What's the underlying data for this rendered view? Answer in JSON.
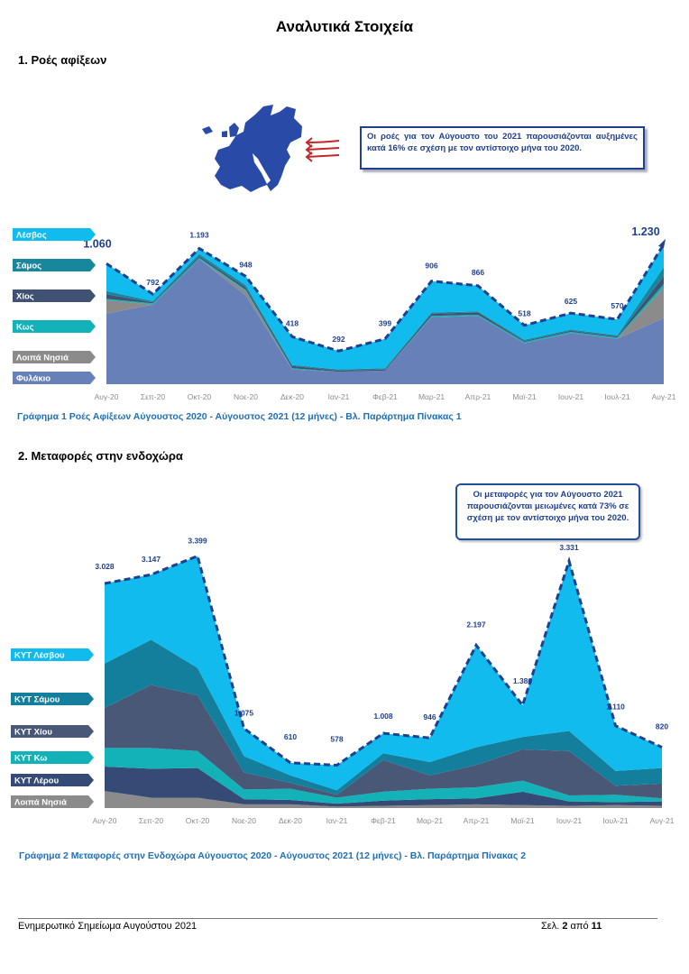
{
  "page": {
    "title": "Αναλυτικά Στοιχεία",
    "section1_title": "1.  Ροές αφίξεων",
    "section2_title": "2.  Μεταφορές στην ενδοχώρα",
    "caption1": "Γράφημα 1 Ροές Αφίξεων Αύγουστος 2020 - Αύγουστος 2021 (12 μήνες) - Βλ. Παράρτημα  Πίνακας 1",
    "caption2": "Γράφημα 2 Μεταφορές στην Ενδοχώρα Αύγουστος 2020 - Αύγουστος 2021 (12 μήνες) - Βλ. Παράρτημα Πίνακας 2",
    "callout1": "Οι ροές για τον Αύγουστο του 2021 παρουσιάζονται αυξημένες κατά 16% σε σχέση με τον αντίστοιχο μήνα του 2020.",
    "callout2": "Οι μεταφορές για τον Αύγουστο 2021 παρουσιάζονται μειωμένες κατά 73% σε σχέση με τον αντίστοιχο μήνα του 2020.",
    "footer_left": "Ενημερωτικό Σημείωμα Αυγούστου 2021",
    "footer_page_prefix": "Σελ. ",
    "footer_page_current": "2",
    "footer_page_mid": " από ",
    "footer_page_total": "11"
  },
  "colors": {
    "accent": "#1f6fb8",
    "dashed_total": "#1f3f8f",
    "map": "#2a4aa8",
    "arrow": "#c0282a"
  },
  "chart_data": [
    {
      "type": "area",
      "title": "",
      "months": [
        "Αυγ-20",
        "Σεπ-20",
        "Οκτ-20",
        "Νοε-20",
        "Δεκ-20",
        "Ιαν-21",
        "Φεβ-21",
        "Μαρ-21",
        "Απρ-21",
        "Μαϊ-21",
        "Ιουν-21",
        "Ιουλ-21",
        "Αυγ-21"
      ],
      "totals": [
        1060,
        792,
        1193,
        948,
        418,
        292,
        399,
        906,
        866,
        518,
        625,
        570,
        1230
      ],
      "total_labels": [
        "1.060",
        "792",
        "1.193",
        "948",
        "418",
        "292",
        "399",
        "906",
        "866",
        "518",
        "625",
        "570",
        "1.230"
      ],
      "ymax": 1300,
      "series": [
        {
          "name": "Φυλάκιο",
          "color": "#6781b8",
          "values": [
            620,
            700,
            1100,
            780,
            130,
            110,
            120,
            590,
            600,
            360,
            450,
            400,
            580
          ]
        },
        {
          "name": "Λοιπά Νησιά",
          "color": "#8b8b8b",
          "values": [
            120,
            0,
            0,
            40,
            0,
            0,
            0,
            0,
            0,
            0,
            0,
            0,
            270
          ]
        },
        {
          "name": "Κως",
          "color": "#12b2b8",
          "values": [
            10,
            10,
            10,
            10,
            10,
            0,
            0,
            10,
            10,
            10,
            10,
            10,
            30
          ]
        },
        {
          "name": "Χίος",
          "color": "#3f5274",
          "values": [
            40,
            10,
            15,
            20,
            20,
            10,
            10,
            20,
            20,
            10,
            10,
            10,
            70
          ]
        },
        {
          "name": "Σάμος",
          "color": "#17879e",
          "values": [
            30,
            10,
            20,
            20,
            10,
            10,
            10,
            10,
            10,
            10,
            10,
            10,
            80
          ]
        },
        {
          "name": "Λέσβος",
          "color": "#11bbee",
          "values": [
            240,
            62,
            48,
            78,
            248,
            162,
            259,
            276,
            226,
            128,
            145,
            140,
            200
          ]
        }
      ]
    },
    {
      "type": "area",
      "title": "",
      "months": [
        "Αυγ-20",
        "Σεπ-20",
        "Οκτ-20",
        "Νοε-20",
        "Δεκ-20",
        "Ιαν-21",
        "Φεβ-21",
        "Μαρ-21",
        "Απρ-21",
        "Μαϊ-21",
        "Ιουν-21",
        "Ιουλ-21",
        "Αυγ-21"
      ],
      "totals": [
        3028,
        3147,
        3399,
        1075,
        610,
        578,
        1008,
        946,
        2197,
        1386,
        3331,
        1110,
        820
      ],
      "total_labels": [
        "3.028",
        "3.147",
        "3.399",
        "1.075",
        "610",
        "578",
        "1.008",
        "946",
        "2.197",
        "1.386",
        "3.331",
        "1.110",
        "820"
      ],
      "ymax": 3600,
      "series": [
        {
          "name": "Λοιπά Νησιά",
          "color": "#8b8b8b",
          "values": [
            230,
            140,
            140,
            50,
            50,
            20,
            30,
            40,
            50,
            40,
            30,
            40,
            30
          ]
        },
        {
          "name": "ΚΥΤ Λέρου",
          "color": "#354a74",
          "values": [
            330,
            390,
            400,
            70,
            60,
            40,
            70,
            80,
            80,
            180,
            60,
            40,
            60
          ]
        },
        {
          "name": "ΚΥΤ Κω",
          "color": "#12b2b8",
          "values": [
            250,
            280,
            230,
            130,
            150,
            80,
            120,
            140,
            150,
            150,
            80,
            100,
            40
          ]
        },
        {
          "name": "ΚΥΤ Χίου",
          "color": "#4a5878",
          "values": [
            540,
            850,
            750,
            230,
            80,
            40,
            430,
            180,
            300,
            420,
            600,
            120,
            200
          ]
        },
        {
          "name": "ΚΥΤ Σάμου",
          "color": "#137f9c",
          "values": [
            600,
            610,
            370,
            220,
            100,
            60,
            90,
            180,
            240,
            170,
            270,
            200,
            210
          ]
        },
        {
          "name": "ΚΥΤ Λέσβου",
          "color": "#11bbee",
          "values": [
            1078,
            877,
            1509,
            375,
            170,
            338,
            268,
            326,
            1377,
            426,
            2291,
            610,
            280
          ]
        }
      ]
    }
  ]
}
